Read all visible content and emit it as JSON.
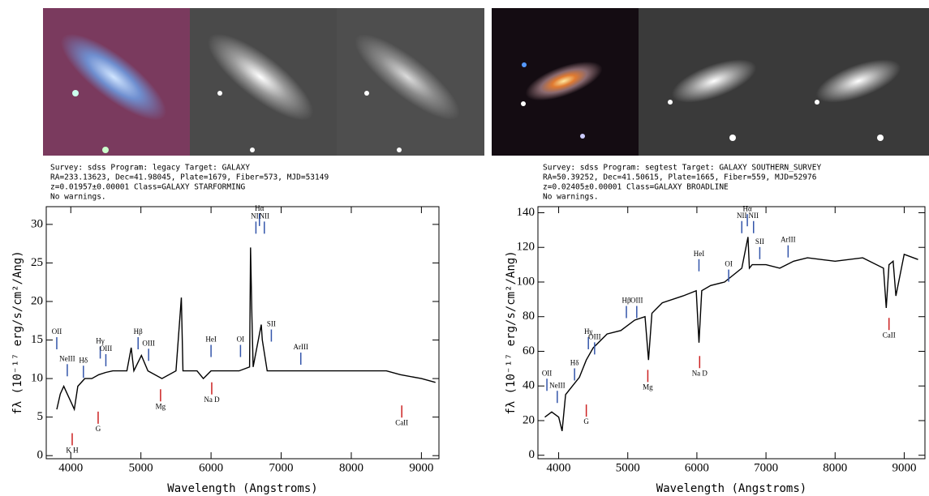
{
  "chart_data": [
    {
      "type": "line",
      "info": [
        "Survey: sdss Program: legacy Target: GALAXY",
        "RA=233.13623, Dec=41.98045, Plate=1679, Fiber=573, MJD=53149",
        "z=0.01957±0.00001 Class=GALAXY STARFORMING",
        "No warnings."
      ],
      "xlabel": "Wavelength (Angstroms)",
      "ylabel": "fλ (10⁻¹⁷ erg/s/cm²/Ang)",
      "xlim": [
        3650,
        9250
      ],
      "ylim": [
        -0.4,
        32.3
      ],
      "xticks": [
        4000,
        5000,
        6000,
        7000,
        8000,
        9000
      ],
      "yticks": [
        0,
        5,
        10,
        15,
        20,
        25,
        30
      ],
      "color": "#000000",
      "x": [
        3800,
        3850,
        3900,
        3950,
        4000,
        4050,
        4100,
        4200,
        4300,
        4400,
        4500,
        4600,
        4800,
        4861,
        4900,
        5007,
        5100,
        5300,
        5500,
        5577,
        5600,
        5800,
        5890,
        6000,
        6200,
        6400,
        6550,
        6563,
        6583,
        6600,
        6716,
        6731,
        6800,
        7000,
        7300,
        7600,
        8000,
        8500,
        8700,
        9000,
        9200
      ],
      "values": [
        6,
        8,
        9,
        8,
        7,
        6,
        9,
        10,
        10,
        10.5,
        10.8,
        11,
        11,
        14,
        11,
        13,
        11,
        10,
        11,
        20.5,
        11,
        11,
        10,
        11,
        11,
        11,
        11.5,
        27,
        18,
        11.5,
        17,
        15,
        11,
        11,
        11,
        11,
        11,
        11,
        10.5,
        10,
        9.5
      ],
      "annotations": [
        {
          "text": "OII",
          "x": 3800,
          "y": 16,
          "color": "#3355aa"
        },
        {
          "text": "NeIII",
          "x": 3950,
          "y": 12.5,
          "color": "#3355aa"
        },
        {
          "text": "Hδ",
          "x": 4180,
          "y": 12.3,
          "color": "#3355aa"
        },
        {
          "text": "Hγ",
          "x": 4420,
          "y": 14.8,
          "color": "#3355aa"
        },
        {
          "text": "OIII",
          "x": 4500,
          "y": 13.8,
          "color": "#3355aa"
        },
        {
          "text": "Hβ",
          "x": 4960,
          "y": 16,
          "color": "#3355aa"
        },
        {
          "text": "OIII",
          "x": 5110,
          "y": 14.5,
          "color": "#3355aa"
        },
        {
          "text": "HeI",
          "x": 6000,
          "y": 15,
          "color": "#3355aa"
        },
        {
          "text": "OI",
          "x": 6420,
          "y": 15,
          "color": "#3355aa"
        },
        {
          "text": "NII",
          "x": 6640,
          "y": 31,
          "color": "#3355aa"
        },
        {
          "text": "Hα",
          "x": 6690,
          "y": 32,
          "color": "#3355aa"
        },
        {
          "text": "NII",
          "x": 6760,
          "y": 31,
          "color": "#3355aa"
        },
        {
          "text": "SII",
          "x": 6860,
          "y": 17,
          "color": "#3355aa"
        },
        {
          "text": "ArIII",
          "x": 7280,
          "y": 14,
          "color": "#3355aa"
        },
        {
          "text": "K H",
          "x": 4020,
          "y": 0.6,
          "color": "#cc2222"
        },
        {
          "text": "G",
          "x": 4390,
          "y": 3.4,
          "color": "#cc2222"
        },
        {
          "text": "Mg",
          "x": 5280,
          "y": 6.3,
          "color": "#cc2222"
        },
        {
          "text": "Na D",
          "x": 6010,
          "y": 7.2,
          "color": "#cc2222"
        },
        {
          "text": "CaII",
          "x": 8720,
          "y": 4.2,
          "color": "#cc2222"
        }
      ]
    },
    {
      "type": "line",
      "info": [
        "Survey: sdss Program: segtest Target: GALAXY SOUTHERN_SURVEY",
        "RA=50.39252, Dec=41.50615, Plate=1665, Fiber=559, MJD=52976",
        "z=0.02405±0.00001 Class=GALAXY BROADLINE",
        "No warnings."
      ],
      "xlabel": "Wavelength (Angstroms)",
      "ylabel": "fλ (10⁻¹⁷ erg/s/cm²/Ang)",
      "xlim": [
        3700,
        9300
      ],
      "ylim": [
        -2,
        143.5
      ],
      "xticks": [
        4000,
        5000,
        6000,
        7000,
        8000,
        9000
      ],
      "yticks": [
        0,
        20,
        40,
        60,
        80,
        100,
        120,
        140
      ],
      "color": "#000000",
      "x": [
        3800,
        3900,
        4000,
        4050,
        4100,
        4200,
        4300,
        4400,
        4500,
        4700,
        4900,
        5100,
        5250,
        5300,
        5350,
        5500,
        5800,
        5990,
        6030,
        6070,
        6200,
        6400,
        6650,
        6740,
        6760,
        6800,
        7000,
        7200,
        7400,
        7600,
        8000,
        8400,
        8700,
        8740,
        8780,
        8840,
        8880,
        9000,
        9200
      ],
      "values": [
        22,
        25,
        22,
        14,
        35,
        40,
        45,
        55,
        62,
        70,
        72,
        78,
        80,
        55,
        82,
        88,
        92,
        95,
        65,
        95,
        98,
        100,
        108,
        126,
        108,
        110,
        110,
        108,
        112,
        114,
        112,
        114,
        108,
        85,
        110,
        112,
        92,
        116,
        113
      ],
      "annotations": [
        {
          "text": "OII",
          "x": 3830,
          "y": 47,
          "color": "#3355aa"
        },
        {
          "text": "NeIII",
          "x": 3980,
          "y": 40,
          "color": "#3355aa"
        },
        {
          "text": "Hδ",
          "x": 4230,
          "y": 53,
          "color": "#3355aa"
        },
        {
          "text": "Hγ",
          "x": 4430,
          "y": 71,
          "color": "#3355aa"
        },
        {
          "text": "OIII",
          "x": 4520,
          "y": 68,
          "color": "#3355aa"
        },
        {
          "text": "Hβ",
          "x": 4980,
          "y": 89,
          "color": "#3355aa"
        },
        {
          "text": "OIII",
          "x": 5130,
          "y": 89,
          "color": "#3355aa"
        },
        {
          "text": "HeI",
          "x": 6030,
          "y": 116,
          "color": "#3355aa"
        },
        {
          "text": "OI",
          "x": 6460,
          "y": 110,
          "color": "#3355aa"
        },
        {
          "text": "NII",
          "x": 6650,
          "y": 138,
          "color": "#3355aa"
        },
        {
          "text": "Hα",
          "x": 6730,
          "y": 142,
          "color": "#3355aa"
        },
        {
          "text": "NII",
          "x": 6820,
          "y": 138,
          "color": "#3355aa"
        },
        {
          "text": "SII",
          "x": 6910,
          "y": 123,
          "color": "#3355aa"
        },
        {
          "text": "ArIII",
          "x": 7320,
          "y": 124,
          "color": "#3355aa"
        },
        {
          "text": "G",
          "x": 4400,
          "y": 19,
          "color": "#cc2222"
        },
        {
          "text": "Mg",
          "x": 5290,
          "y": 39,
          "color": "#cc2222"
        },
        {
          "text": "Na D",
          "x": 6040,
          "y": 47,
          "color": "#cc2222"
        },
        {
          "text": "CaII",
          "x": 8780,
          "y": 69,
          "color": "#cc2222"
        }
      ]
    }
  ]
}
